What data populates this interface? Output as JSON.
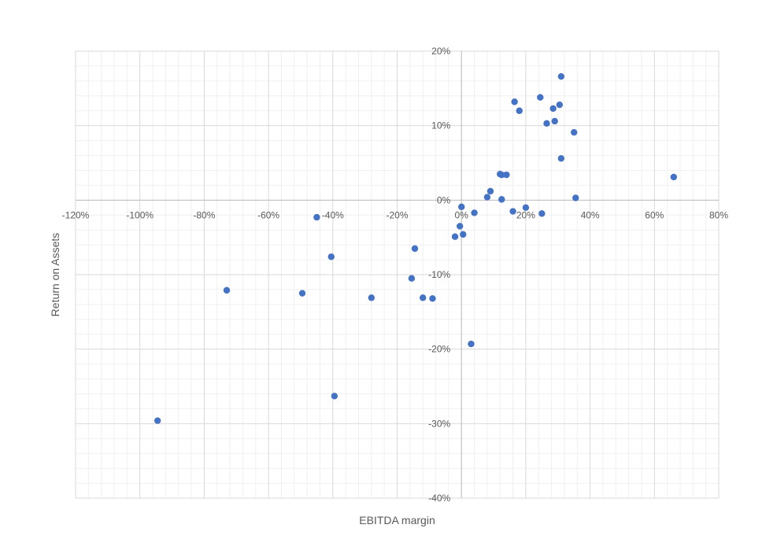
{
  "chart_data": {
    "type": "scatter",
    "title": "",
    "xlabel": "EBITDA margin",
    "ylabel": "Return on Assets",
    "xlim": [
      -1.2,
      0.8
    ],
    "ylim": [
      -0.4,
      0.2
    ],
    "x_major_step": 0.2,
    "y_major_step": 0.1,
    "x_ticks": [
      "-120%",
      "-100%",
      "-80%",
      "-60%",
      "-40%",
      "-20%",
      "0%",
      "20%",
      "40%",
      "60%",
      "80%"
    ],
    "y_ticks": [
      "-40%",
      "-30%",
      "-20%",
      "-10%",
      "0%",
      "10%",
      "20%"
    ],
    "grid": true,
    "minor_grid": true,
    "legend": "none",
    "marker_color": "#4472C4",
    "major_grid_color": "#D9D9D9",
    "minor_grid_color": "#F0F0F0",
    "series": [
      {
        "points": [
          {
            "x": 0.31,
            "y": 0.166
          },
          {
            "x": 0.245,
            "y": 0.138
          },
          {
            "x": 0.165,
            "y": 0.132
          },
          {
            "x": 0.305,
            "y": 0.128
          },
          {
            "x": 0.285,
            "y": 0.123
          },
          {
            "x": 0.18,
            "y": 0.12
          },
          {
            "x": 0.29,
            "y": 0.106
          },
          {
            "x": 0.265,
            "y": 0.103
          },
          {
            "x": 0.35,
            "y": 0.091
          },
          {
            "x": 0.31,
            "y": 0.056
          },
          {
            "x": 0.12,
            "y": 0.035
          },
          {
            "x": 0.125,
            "y": 0.034
          },
          {
            "x": 0.14,
            "y": 0.034
          },
          {
            "x": 0.66,
            "y": 0.031
          },
          {
            "x": 0.09,
            "y": 0.012
          },
          {
            "x": 0.08,
            "y": 0.004
          },
          {
            "x": 0.125,
            "y": 0.001
          },
          {
            "x": 0.355,
            "y": 0.003
          },
          {
            "x": 0.0,
            "y": -0.009
          },
          {
            "x": 0.2,
            "y": -0.01
          },
          {
            "x": 0.16,
            "y": -0.015
          },
          {
            "x": 0.25,
            "y": -0.018
          },
          {
            "x": 0.04,
            "y": -0.017
          },
          {
            "x": -0.45,
            "y": -0.023
          },
          {
            "x": -0.005,
            "y": -0.035
          },
          {
            "x": 0.005,
            "y": -0.046
          },
          {
            "x": -0.02,
            "y": -0.049
          },
          {
            "x": -0.145,
            "y": -0.065
          },
          {
            "x": -0.405,
            "y": -0.076
          },
          {
            "x": -0.155,
            "y": -0.105
          },
          {
            "x": -0.73,
            "y": -0.121
          },
          {
            "x": -0.495,
            "y": -0.125
          },
          {
            "x": -0.28,
            "y": -0.131
          },
          {
            "x": -0.12,
            "y": -0.131
          },
          {
            "x": -0.09,
            "y": -0.132
          },
          {
            "x": 0.03,
            "y": -0.193
          },
          {
            "x": -0.395,
            "y": -0.263
          },
          {
            "x": -0.945,
            "y": -0.296
          }
        ]
      }
    ]
  }
}
